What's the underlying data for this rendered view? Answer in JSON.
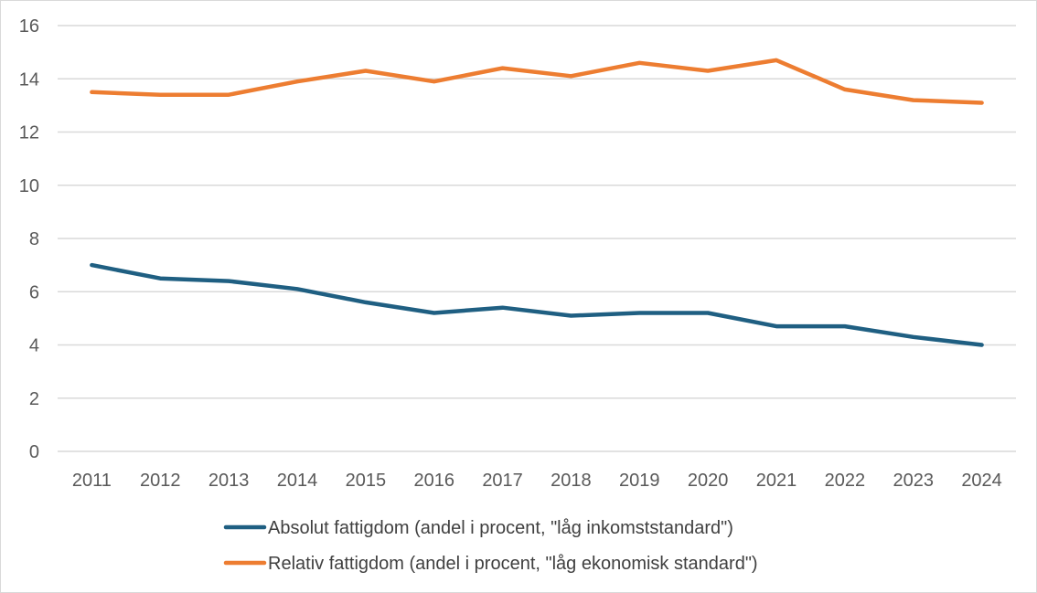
{
  "chart_data": {
    "type": "line",
    "title": "",
    "xlabel": "",
    "ylabel": "",
    "categories": [
      "2011",
      "2012",
      "2013",
      "2014",
      "2015",
      "2016",
      "2017",
      "2018",
      "2019",
      "2020",
      "2021",
      "2022",
      "2023",
      "2024"
    ],
    "ylim": [
      0,
      16
    ],
    "yticks": [
      0,
      2,
      4,
      6,
      8,
      10,
      12,
      14,
      16
    ],
    "grid": true,
    "legend_position": "bottom",
    "series": [
      {
        "name": "Absolut fattigdom (andel i procent, \"låg inkomststandard\")",
        "color": "#1f5f82",
        "values": [
          7.0,
          6.5,
          6.4,
          6.1,
          5.6,
          5.2,
          5.4,
          5.1,
          5.2,
          5.2,
          4.7,
          4.7,
          4.3,
          4.0
        ]
      },
      {
        "name": "Relativ fattigdom (andel i procent, \"låg ekonomisk standard\")",
        "color": "#ed7d31",
        "values": [
          13.5,
          13.4,
          13.4,
          13.9,
          14.3,
          13.9,
          14.4,
          14.1,
          14.6,
          14.3,
          14.7,
          13.6,
          13.2,
          13.1
        ]
      }
    ]
  }
}
